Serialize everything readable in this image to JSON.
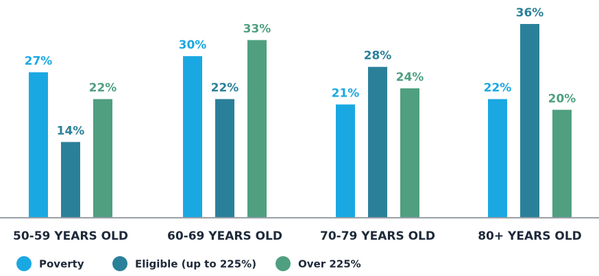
{
  "chart_data": {
    "type": "bar",
    "categories": [
      "50-59 YEARS OLD",
      "60-69 YEARS OLD",
      "70-79 YEARS OLD",
      "80+ YEARS OLD"
    ],
    "series": [
      {
        "name": "Poverty",
        "color": "#1aa8e2",
        "values": [
          27,
          30,
          21,
          22
        ],
        "value_labels": [
          "27%",
          "30%",
          "21%",
          "22%"
        ]
      },
      {
        "name": "Eligible (up to 225%)",
        "color": "#2b8099",
        "values": [
          14,
          22,
          28,
          36
        ],
        "value_labels": [
          "14%",
          "22%",
          "28%",
          "36%"
        ]
      },
      {
        "name": "Over 225%",
        "color": "#4f9f80",
        "values": [
          22,
          33,
          24,
          20
        ],
        "value_labels": [
          "22%",
          "33%",
          "24%",
          "20%"
        ]
      }
    ]
  }
}
